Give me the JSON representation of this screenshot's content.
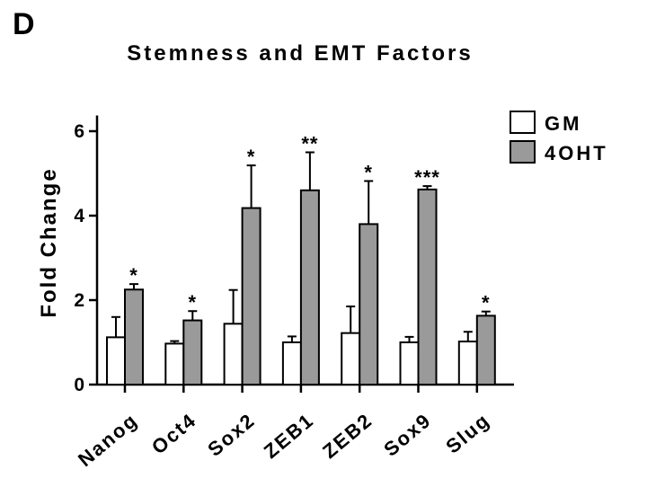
{
  "panel_label": "D",
  "chart_data": {
    "type": "bar",
    "title": "Stemness and EMT Factors",
    "xlabel": "",
    "ylabel": "Fold Change",
    "ylim": [
      0,
      6.5
    ],
    "yticks": [
      0,
      2,
      4,
      6
    ],
    "grid": false,
    "legend_position": "top-right",
    "categories": [
      "Nanog",
      "Oct4",
      "Sox2",
      "ZEB1",
      "ZEB2",
      "Sox9",
      "Slug"
    ],
    "series": [
      {
        "name": "GM",
        "color": "#ffffff",
        "values": [
          1.12,
          0.97,
          1.44,
          1.0,
          1.22,
          1.0,
          1.02
        ],
        "errors": [
          0.48,
          0.06,
          0.8,
          0.14,
          0.63,
          0.13,
          0.23
        ]
      },
      {
        "name": "4OHT",
        "color": "#9a9a9a",
        "values": [
          2.25,
          1.52,
          4.18,
          4.6,
          3.8,
          4.62,
          1.63
        ],
        "errors": [
          0.13,
          0.22,
          1.01,
          0.9,
          1.02,
          0.08,
          0.1
        ]
      }
    ],
    "significance": [
      "*",
      "*",
      "*",
      "**",
      "*",
      "***",
      "*"
    ]
  }
}
